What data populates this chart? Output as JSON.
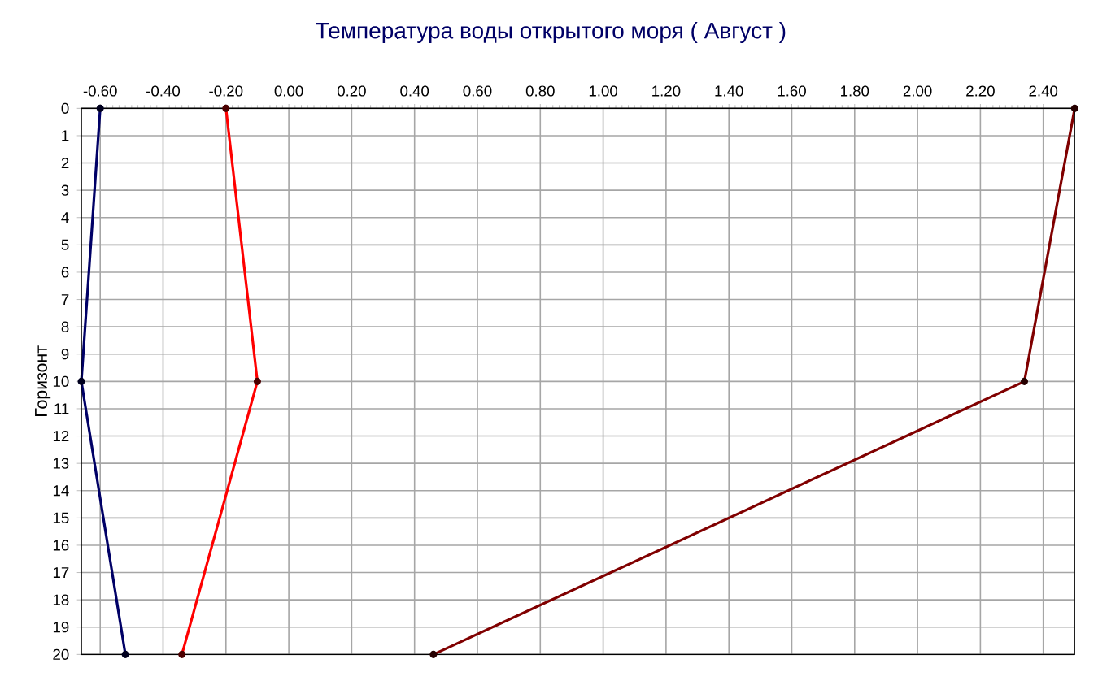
{
  "chart_data": {
    "type": "line",
    "title": "Температура воды открытого моря    ( Август )",
    "ylabel": "Горизонт",
    "xlim": [
      -0.66,
      2.5
    ],
    "ylim": [
      20,
      0
    ],
    "xticks": [
      {
        "value": -0.6,
        "label": "-0.60"
      },
      {
        "value": -0.4,
        "label": "-0.40"
      },
      {
        "value": -0.2,
        "label": "-0.20"
      },
      {
        "value": 0,
        "label": "0.00"
      },
      {
        "value": 0.2,
        "label": "0.20"
      },
      {
        "value": 0.4,
        "label": "0.40"
      },
      {
        "value": 0.6,
        "label": "0.60"
      },
      {
        "value": 0.8,
        "label": "0.80"
      },
      {
        "value": 1.0,
        "label": "1.00"
      },
      {
        "value": 1.2,
        "label": "1.20"
      },
      {
        "value": 1.4,
        "label": "1.40"
      },
      {
        "value": 1.6,
        "label": "1.60"
      },
      {
        "value": 1.8,
        "label": "1.80"
      },
      {
        "value": 2.0,
        "label": "2.00"
      },
      {
        "value": 2.2,
        "label": "2.20"
      },
      {
        "value": 2.4,
        "label": "2.40"
      }
    ],
    "yticks": [
      0,
      1,
      2,
      3,
      4,
      5,
      6,
      7,
      8,
      9,
      10,
      11,
      12,
      13,
      14,
      15,
      16,
      17,
      18,
      19,
      20
    ],
    "grid": true,
    "marker": "circle",
    "line_style": "solid",
    "series": [
      {
        "color": "#000066",
        "x": [
          -0.6,
          -0.66,
          -0.52
        ],
        "values": [
          0,
          10,
          20
        ]
      },
      {
        "color": "#ff0000",
        "x": [
          -0.2,
          -0.1,
          -0.34
        ],
        "values": [
          0,
          10,
          20
        ]
      },
      {
        "color": "#800000",
        "x": [
          2.5,
          2.34,
          0.46
        ],
        "values": [
          0,
          10,
          20
        ]
      }
    ]
  }
}
